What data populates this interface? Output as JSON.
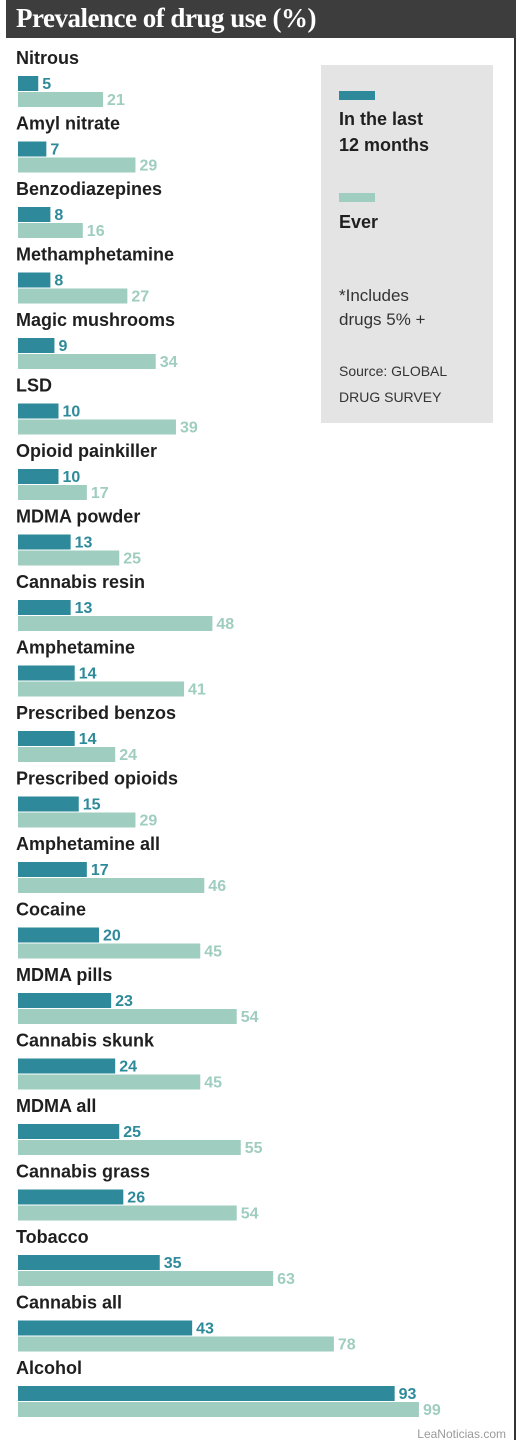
{
  "chart_data": {
    "type": "bar",
    "title": "Prevalence of drug use (%)",
    "categories": [
      "Nitrous",
      "Amyl nitrate",
      "Benzodiazepines",
      "Methamphetamine",
      "Magic mushrooms",
      "LSD",
      "Opioid painkiller",
      "MDMA powder",
      "Cannabis resin",
      "Amphetamine",
      "Prescribed benzos",
      "Prescribed opioids",
      "Amphetamine all",
      "Cocaine",
      "MDMA pills",
      "Cannabis skunk",
      "MDMA all",
      "Cannabis grass",
      "Tobacco",
      "Cannabis all",
      "Alcohol"
    ],
    "series": [
      {
        "name": "In the last 12 months",
        "color": "#2e8a9a",
        "values": [
          5,
          7,
          8,
          8,
          9,
          10,
          10,
          13,
          13,
          14,
          14,
          15,
          17,
          20,
          23,
          24,
          25,
          26,
          35,
          43,
          93
        ]
      },
      {
        "name": "Ever",
        "color": "#9fcdbf",
        "values": [
          21,
          29,
          16,
          27,
          34,
          39,
          17,
          25,
          48,
          41,
          24,
          29,
          46,
          45,
          54,
          45,
          55,
          54,
          63,
          78,
          99
        ]
      }
    ],
    "xlim": [
      0,
      100
    ],
    "orientation": "horizontal",
    "legend_position": "top-right",
    "grid": false
  },
  "legend": {
    "recent_label_line1": "In the last",
    "recent_label_line2": "12 months",
    "ever_label": "Ever",
    "note_line1": "*Includes",
    "note_line2": "drugs 5% +",
    "source_line1": "Source: GLOBAL",
    "source_line2": "DRUG SURVEY"
  },
  "watermark": "LeaNoticias.com",
  "colors": {
    "title_bg": "#3d3d3d",
    "recent": "#2e8a9a",
    "ever": "#9fcdbf",
    "legend_bg": "#e4e4e4"
  }
}
